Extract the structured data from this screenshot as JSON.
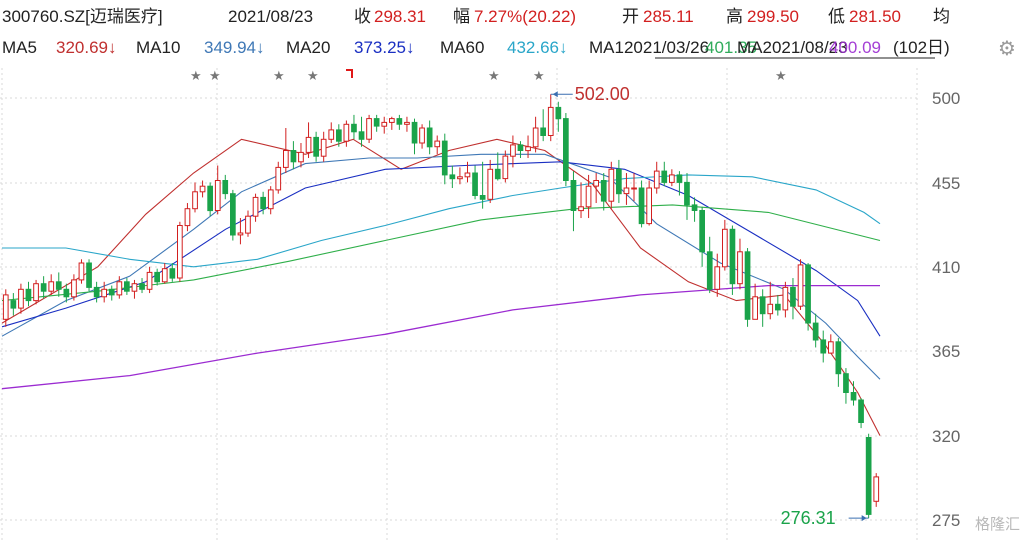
{
  "header": {
    "code": "300760.SZ[迈瑞医疗]",
    "date": "2021/08/23",
    "close_label": "收",
    "close_value": "298.31",
    "change_label": "幅",
    "change_value": "7.27%(20.22)",
    "open_label": "开",
    "open_value": "285.11",
    "high_label": "高",
    "high_value": "299.50",
    "low_label": "低",
    "low_value": "281.50",
    "avg_label": "均"
  },
  "ma_bar": {
    "items": [
      {
        "label": "MA5",
        "value": "320.69↓",
        "color": "#c0302f"
      },
      {
        "label": "MA10",
        "value": "349.94↓",
        "color": "#3f78b6"
      },
      {
        "label": "MA20",
        "value": "373.25↓",
        "color": "#1a2fc2"
      },
      {
        "label": "MA60",
        "value": "432.66↓",
        "color": "#2aa6c9"
      }
    ],
    "ma120_fragment": "MA12021/03/26",
    "ma120_value_fragment": "401.35",
    "ma250_fragment": "MA2021/08/23",
    "ma250_value_fragment": "400.09",
    "period": "(102日)"
  },
  "annotations": {
    "max_label": "502.00",
    "min_label": "276.31"
  },
  "watermark": "格隆汇",
  "colors": {
    "up": "#d21f1f",
    "down": "#1aa34a",
    "ma5": "#c0302f",
    "ma10": "#3f78b6",
    "ma20": "#1a2fc2",
    "ma60": "#2aa6c9",
    "ma120": "#2faf4a",
    "ma250": "#9b2bd1",
    "grid": "#d9d9d9"
  },
  "chart_data": {
    "type": "candlestick",
    "ylim": [
      270,
      510
    ],
    "y_ticks": [
      "500",
      "455",
      "410",
      "365",
      "320",
      "275"
    ],
    "candles": [
      [
        382,
        395,
        378,
        398
      ],
      [
        392,
        388,
        384,
        396
      ],
      [
        388,
        398,
        385,
        401
      ],
      [
        398,
        392,
        389,
        402
      ],
      [
        392,
        401,
        390,
        403
      ],
      [
        401,
        397,
        393,
        405
      ],
      [
        397,
        402,
        395,
        406
      ],
      [
        402,
        398,
        394,
        407
      ],
      [
        398,
        394,
        391,
        401
      ],
      [
        394,
        403,
        392,
        406
      ],
      [
        403,
        412,
        401,
        414
      ],
      [
        412,
        399,
        397,
        414
      ],
      [
        399,
        394,
        391,
        402
      ],
      [
        394,
        398,
        391,
        402
      ],
      [
        398,
        395,
        392,
        400
      ],
      [
        395,
        402,
        393,
        405
      ],
      [
        402,
        397,
        395,
        404
      ],
      [
        397,
        401,
        393,
        403
      ],
      [
        401,
        398,
        396,
        404
      ],
      [
        398,
        407,
        396,
        410
      ],
      [
        407,
        402,
        400,
        409
      ],
      [
        402,
        409,
        401,
        412
      ],
      [
        409,
        404,
        402,
        412
      ],
      [
        404,
        432,
        402,
        434
      ],
      [
        432,
        441,
        429,
        444
      ],
      [
        441,
        450,
        439,
        455
      ],
      [
        450,
        453,
        447,
        456
      ],
      [
        453,
        440,
        437,
        455
      ],
      [
        440,
        456,
        438,
        464
      ],
      [
        456,
        449,
        446,
        459
      ],
      [
        449,
        427,
        424,
        451
      ],
      [
        427,
        428,
        422,
        436
      ],
      [
        428,
        437,
        426,
        440
      ],
      [
        437,
        447,
        434,
        449
      ],
      [
        447,
        441,
        438,
        450
      ],
      [
        441,
        451,
        438,
        453
      ],
      [
        451,
        463,
        449,
        466
      ],
      [
        463,
        472,
        460,
        484
      ],
      [
        472,
        466,
        462,
        477
      ],
      [
        466,
        471,
        463,
        476
      ],
      [
        471,
        479,
        468,
        487
      ],
      [
        479,
        469,
        466,
        482
      ],
      [
        469,
        478,
        466,
        482
      ],
      [
        478,
        483,
        476,
        487
      ],
      [
        483,
        477,
        474,
        486
      ],
      [
        477,
        486,
        474,
        488
      ],
      [
        486,
        482,
        478,
        491
      ],
      [
        482,
        478,
        474,
        490
      ],
      [
        478,
        489,
        476,
        491
      ],
      [
        489,
        485,
        482,
        491
      ],
      [
        485,
        487,
        481,
        490
      ],
      [
        487,
        489,
        483,
        490
      ],
      [
        489,
        486,
        483,
        491
      ],
      [
        486,
        487,
        482,
        490
      ],
      [
        487,
        476,
        470,
        489
      ],
      [
        476,
        484,
        473,
        486
      ],
      [
        484,
        474,
        470,
        488
      ],
      [
        474,
        477,
        470,
        480
      ],
      [
        477,
        459,
        454,
        481
      ],
      [
        459,
        457,
        452,
        464
      ],
      [
        457,
        458,
        454,
        463
      ],
      [
        458,
        460,
        455,
        466
      ],
      [
        460,
        448,
        446,
        464
      ],
      [
        448,
        446,
        441,
        466
      ],
      [
        446,
        462,
        444,
        467
      ],
      [
        462,
        457,
        456,
        471
      ],
      [
        457,
        469,
        455,
        472
      ],
      [
        469,
        475,
        463,
        480
      ],
      [
        475,
        472,
        468,
        477
      ],
      [
        472,
        474,
        468,
        480
      ],
      [
        474,
        484,
        471,
        490
      ],
      [
        484,
        480,
        477,
        494
      ],
      [
        480,
        495,
        477,
        502
      ],
      [
        495,
        489,
        482,
        498
      ],
      [
        489,
        456,
        453,
        492
      ],
      [
        456,
        440,
        429,
        461
      ],
      [
        440,
        442,
        436,
        455
      ],
      [
        442,
        453,
        436,
        459
      ],
      [
        453,
        456,
        444,
        460
      ],
      [
        456,
        445,
        440,
        460
      ],
      [
        445,
        462,
        441,
        466
      ],
      [
        462,
        449,
        444,
        467
      ],
      [
        449,
        452,
        443,
        460
      ],
      [
        452,
        452,
        445,
        460
      ],
      [
        452,
        433,
        431,
        456
      ],
      [
        433,
        452,
        432,
        456
      ],
      [
        452,
        461,
        449,
        466
      ],
      [
        461,
        455,
        453,
        466
      ],
      [
        455,
        459,
        453,
        462
      ],
      [
        459,
        455,
        448,
        461
      ],
      [
        455,
        443,
        435,
        460
      ],
      [
        443,
        440,
        434,
        447
      ],
      [
        440,
        418,
        410,
        442
      ],
      [
        418,
        398,
        396,
        426
      ],
      [
        398,
        410,
        394,
        417
      ],
      [
        410,
        430,
        408,
        435
      ],
      [
        430,
        401,
        395,
        432
      ],
      [
        401,
        418,
        398,
        425
      ],
      [
        418,
        382,
        378,
        420
      ],
      [
        382,
        394,
        382,
        401
      ],
      [
        394,
        385,
        378,
        398
      ],
      [
        385,
        390,
        382,
        402
      ],
      [
        390,
        387,
        384,
        395
      ],
      [
        387,
        399,
        383,
        402
      ],
      [
        399,
        389,
        382,
        404
      ],
      [
        389,
        411,
        387,
        414
      ],
      [
        411,
        380,
        376,
        412
      ],
      [
        380,
        371,
        367,
        385
      ],
      [
        371,
        364,
        359,
        376
      ],
      [
        364,
        370,
        364,
        374
      ],
      [
        370,
        353,
        346,
        372
      ],
      [
        353,
        343,
        337,
        356
      ],
      [
        343,
        339,
        336,
        349
      ],
      [
        339,
        327,
        324,
        340
      ],
      [
        319,
        278,
        276,
        321
      ],
      [
        285,
        298,
        282,
        300
      ]
    ],
    "ma_series": {
      "MA5": [
        [
          0,
          380
        ],
        [
          15,
          395
        ],
        [
          30,
          410
        ],
        [
          45,
          438
        ],
        [
          60,
          460
        ],
        [
          75,
          478
        ],
        [
          95,
          470
        ],
        [
          110,
          478
        ],
        [
          125,
          462
        ],
        [
          140,
          472
        ],
        [
          155,
          478
        ],
        [
          170,
          472
        ],
        [
          185,
          454
        ],
        [
          200,
          420
        ],
        [
          215,
          402
        ],
        [
          230,
          392
        ],
        [
          245,
          395
        ],
        [
          258,
          368
        ],
        [
          268,
          343
        ],
        [
          275,
          320
        ]
      ],
      "MA10": [
        [
          0,
          373
        ],
        [
          20,
          392
        ],
        [
          40,
          405
        ],
        [
          60,
          430
        ],
        [
          75,
          450
        ],
        [
          95,
          465
        ],
        [
          115,
          468
        ],
        [
          130,
          468
        ],
        [
          150,
          470
        ],
        [
          170,
          470
        ],
        [
          190,
          458
        ],
        [
          205,
          433
        ],
        [
          225,
          412
        ],
        [
          245,
          398
        ],
        [
          258,
          380
        ],
        [
          268,
          362
        ],
        [
          275,
          350
        ]
      ],
      "MA20": [
        [
          0,
          378
        ],
        [
          20,
          388
        ],
        [
          45,
          402
        ],
        [
          70,
          430
        ],
        [
          95,
          452
        ],
        [
          120,
          462
        ],
        [
          145,
          464
        ],
        [
          175,
          466
        ],
        [
          195,
          462
        ],
        [
          215,
          448
        ],
        [
          235,
          428
        ],
        [
          255,
          408
        ],
        [
          268,
          392
        ],
        [
          275,
          373
        ]
      ],
      "MA60": [
        [
          0,
          420
        ],
        [
          20,
          420
        ],
        [
          40,
          414
        ],
        [
          60,
          410
        ],
        [
          80,
          414
        ],
        [
          100,
          424
        ],
        [
          120,
          432
        ],
        [
          140,
          441
        ],
        [
          160,
          448
        ],
        [
          175,
          452
        ],
        [
          195,
          457
        ],
        [
          215,
          459
        ],
        [
          235,
          458
        ],
        [
          255,
          451
        ],
        [
          270,
          439
        ],
        [
          275,
          433
        ]
      ],
      "MA120": [
        [
          0,
          392
        ],
        [
          30,
          397
        ],
        [
          60,
          403
        ],
        [
          90,
          413
        ],
        [
          120,
          424
        ],
        [
          150,
          435
        ],
        [
          180,
          441
        ],
        [
          210,
          443
        ],
        [
          240,
          439
        ],
        [
          275,
          424
        ]
      ],
      "MA250": [
        [
          0,
          345
        ],
        [
          40,
          352
        ],
        [
          80,
          364
        ],
        [
          120,
          374
        ],
        [
          160,
          387
        ],
        [
          200,
          395
        ],
        [
          240,
          400
        ],
        [
          275,
          400
        ]
      ]
    },
    "markers": {
      "stars_x": [
        196,
        215,
        279,
        313,
        494,
        539,
        781
      ],
      "red_bracket_x": 349
    }
  }
}
